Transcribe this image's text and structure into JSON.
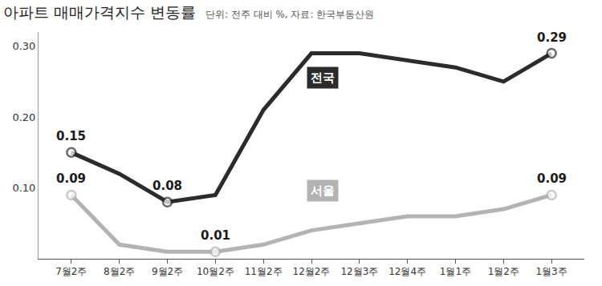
{
  "chart_data": {
    "type": "line",
    "title": "아파트 매매가격지수 변동률",
    "subtitle": "단위: 전주 대비 %, 자료: 한국부동산원",
    "categories": [
      "7월2주",
      "8월2주",
      "9월2주",
      "10월2주",
      "11월2주",
      "12월2주",
      "12월3주",
      "12월4주",
      "1월1주",
      "1월2주",
      "1월3주"
    ],
    "series": [
      {
        "name": "전국",
        "color": "#2b2b2b",
        "marker": "circle",
        "values": [
          0.15,
          0.12,
          0.08,
          0.09,
          0.21,
          0.29,
          0.29,
          0.28,
          0.27,
          0.25,
          0.29
        ]
      },
      {
        "name": "서울",
        "color": "#b3b3b3",
        "marker": "circle",
        "values": [
          0.09,
          0.02,
          0.01,
          0.01,
          0.02,
          0.04,
          0.05,
          0.06,
          0.06,
          0.07,
          0.09
        ]
      }
    ],
    "annotations": [
      {
        "series": "전국",
        "category": "7월2주",
        "text": "0.15"
      },
      {
        "series": "전국",
        "category": "9월2주",
        "text": "0.08"
      },
      {
        "series": "전국",
        "category": "1월3주",
        "text": "0.29"
      },
      {
        "series": "서울",
        "category": "7월2주",
        "text": "0.09"
      },
      {
        "series": "서울",
        "category": "10월2주",
        "text": "0.01"
      },
      {
        "series": "서울",
        "category": "1월3주",
        "text": "0.09"
      }
    ],
    "ylim": [
      0,
      0.32
    ],
    "yticks": [
      {
        "value": 0.1,
        "label": "0.10"
      },
      {
        "value": 0.2,
        "label": "0.20"
      },
      {
        "value": 0.3,
        "label": "0.30"
      }
    ],
    "grid": false
  }
}
